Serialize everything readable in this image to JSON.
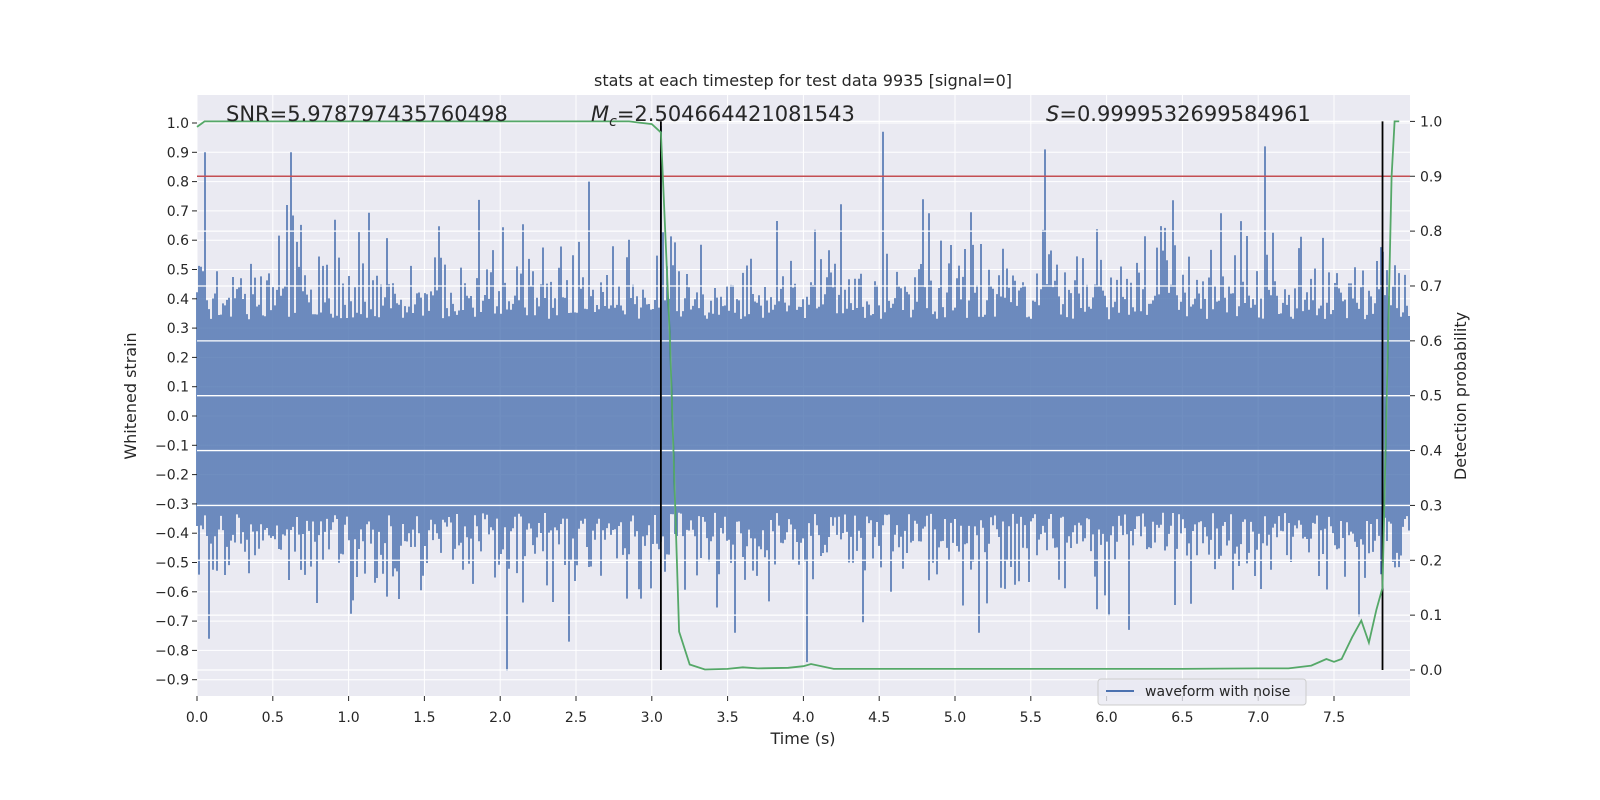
{
  "chart_data": {
    "type": "line",
    "title": "stats at each timestep for test data 9935 [signal=0]",
    "xlabel": "Time (s)",
    "ylabel": "Whitened strain",
    "y2label": "Detection probability",
    "xlim": [
      0.0,
      8.0
    ],
    "ylim": [
      -0.96,
      1.09
    ],
    "y2lim": [
      -0.048,
      1.093
    ],
    "x_ticks": [
      "0.0",
      "0.5",
      "1.0",
      "1.5",
      "2.0",
      "2.5",
      "3.0",
      "3.5",
      "4.0",
      "4.5",
      "5.0",
      "5.5",
      "6.0",
      "6.5",
      "7.0",
      "7.5"
    ],
    "y_ticks": [
      "1.0",
      "0.9",
      "0.8",
      "0.7",
      "0.6",
      "0.5",
      "0.4",
      "0.3",
      "0.2",
      "0.1",
      "0.0",
      "−0.1",
      "−0.2",
      "−0.3",
      "−0.4",
      "−0.5",
      "−0.6",
      "−0.7",
      "−0.8",
      "−0.9"
    ],
    "y2_ticks": [
      "1.0",
      "0.9",
      "0.8",
      "0.7",
      "0.6",
      "0.5",
      "0.4",
      "0.3",
      "0.2",
      "0.1",
      "0.0"
    ],
    "grid": true,
    "legend_placement": "lower-right",
    "annotations": {
      "snr": "SNR=5.978797435760498",
      "mc_symbol": "M",
      "mc_sub": "c",
      "mc_value": "=2.504664421081543",
      "s_symbol": "S",
      "s_value": "=0.9999532699584961"
    },
    "colors": {
      "background": "#eaeaf2",
      "grid": "#ffffff",
      "waveform": "#4c72b0",
      "probability": "#55a868",
      "threshold": "#c44e52",
      "marker": "#000000"
    },
    "series": [
      {
        "name": "waveform with noise",
        "kind": "whitened strain, noise envelope",
        "notable_peaks": [
          {
            "x": 0.05,
            "y": 0.9
          },
          {
            "x": 0.62,
            "y": 0.9
          },
          {
            "x": 2.58,
            "y": 0.8
          },
          {
            "x": 3.06,
            "y": 0.99
          },
          {
            "x": 4.52,
            "y": 0.97
          },
          {
            "x": 5.6,
            "y": 0.91
          },
          {
            "x": 7.05,
            "y": 0.92
          }
        ],
        "notable_troughs": [
          {
            "x": 0.08,
            "y": -0.76
          },
          {
            "x": 2.05,
            "y": -0.87
          },
          {
            "x": 2.45,
            "y": -0.77
          },
          {
            "x": 4.02,
            "y": -0.84
          },
          {
            "x": 6.15,
            "y": -0.73
          }
        ]
      },
      {
        "kind": "detection probability",
        "axis": "right",
        "x": [
          0.0,
          0.05,
          0.1,
          0.5,
          1.0,
          1.5,
          2.0,
          2.5,
          2.85,
          3.0,
          3.06,
          3.12,
          3.18,
          3.25,
          3.35,
          3.5,
          3.6,
          3.7,
          3.9,
          4.0,
          4.05,
          4.2,
          4.5,
          5.0,
          5.5,
          6.0,
          6.5,
          7.0,
          7.2,
          7.35,
          7.45,
          7.5,
          7.55,
          7.62,
          7.68,
          7.73,
          7.78,
          7.82,
          7.86,
          7.88,
          7.9,
          7.93
        ],
        "values": [
          0.99,
          1.0,
          1.0,
          1.0,
          1.0,
          1.0,
          1.0,
          1.0,
          1.0,
          0.995,
          0.98,
          0.6,
          0.07,
          0.01,
          0.001,
          0.002,
          0.005,
          0.003,
          0.004,
          0.007,
          0.011,
          0.002,
          0.002,
          0.002,
          0.002,
          0.002,
          0.002,
          0.003,
          0.003,
          0.008,
          0.02,
          0.015,
          0.02,
          0.06,
          0.09,
          0.05,
          0.11,
          0.15,
          0.65,
          0.9,
          1.0,
          1.0
        ]
      },
      {
        "kind": "threshold",
        "axis": "right",
        "value": 0.9
      }
    ],
    "vertical_markers": [
      3.06,
      7.82
    ]
  }
}
